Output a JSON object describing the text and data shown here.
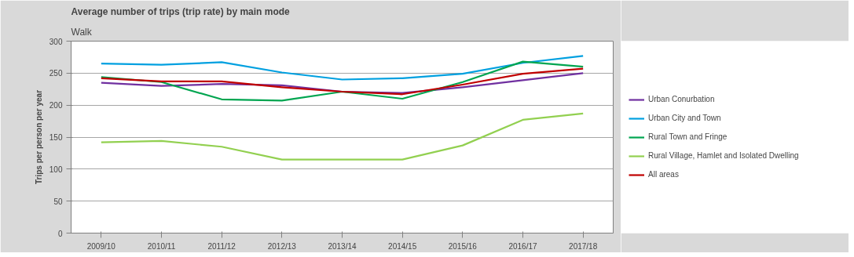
{
  "chart_data": {
    "type": "line",
    "title": "Average number of trips (trip rate) by main mode",
    "subtitle": "Walk",
    "ylabel": "Trips per person per year",
    "categories": [
      "2009/10",
      "2010/11",
      "2011/12",
      "2012/13",
      "2013/14",
      "2014/15",
      "2015/16",
      "2016/17",
      "2017/18"
    ],
    "series": [
      {
        "name": "Urban Conurbation",
        "color": "#7030a0",
        "values": [
          235,
          230,
          233,
          231,
          221,
          219,
          228,
          239,
          250
        ]
      },
      {
        "name": "Urban City and Town",
        "color": "#00a0e0",
        "values": [
          265,
          263,
          267,
          251,
          240,
          242,
          249,
          266,
          277
        ]
      },
      {
        "name": "Rural Town and Fringe",
        "color": "#00a550",
        "values": [
          244,
          236,
          209,
          207,
          221,
          210,
          236,
          268,
          260
        ]
      },
      {
        "name": "Rural Village, Hamlet and Isolated Dwelling",
        "color": "#92d050",
        "values": [
          142,
          144,
          135,
          115,
          115,
          115,
          137,
          177,
          187
        ]
      },
      {
        "name": "All areas",
        "color": "#c00000",
        "values": [
          242,
          237,
          237,
          228,
          221,
          217,
          232,
          249,
          257
        ]
      }
    ],
    "ylim": [
      0,
      300
    ],
    "yticks": [
      0,
      50,
      100,
      150,
      200,
      250,
      300
    ],
    "grid": "y",
    "legend": "right",
    "line_style": "solid"
  }
}
